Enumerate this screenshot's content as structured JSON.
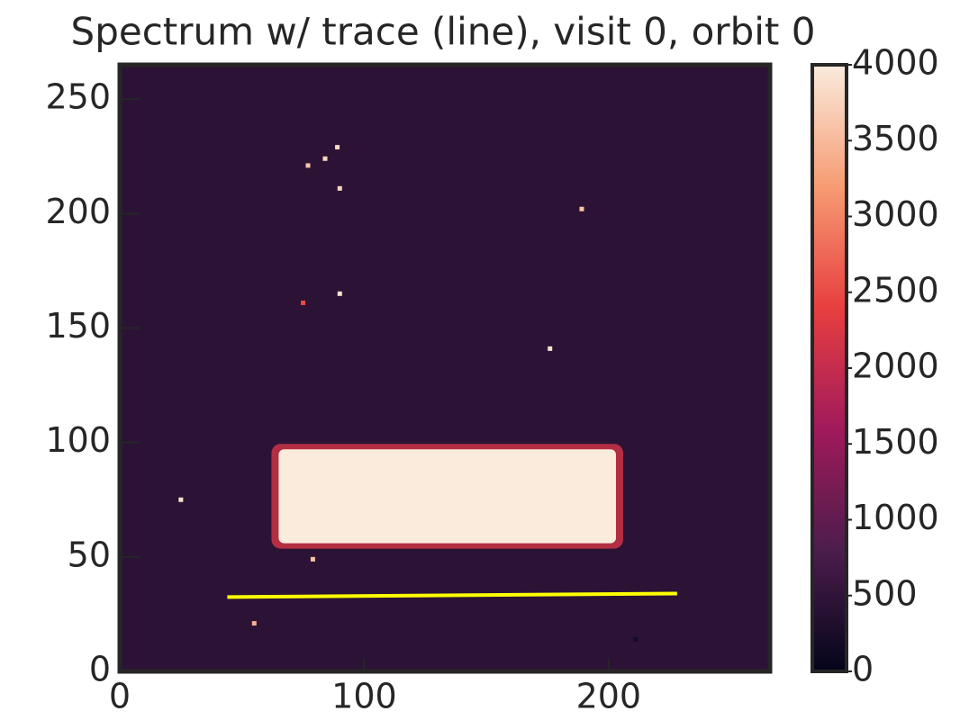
{
  "chart_data": {
    "type": "image",
    "title": "Spectrum w/ trace (line), visit 0, orbit 0",
    "xlim": [
      0,
      266
    ],
    "ylim": [
      0,
      265
    ],
    "xticks": [
      0,
      100,
      200
    ],
    "yticks": [
      0,
      50,
      100,
      150,
      200,
      250
    ],
    "background_value": 450,
    "colormap": [
      "#03051a",
      "#4c1d4b",
      "#a11a5b",
      "#e83f3f",
      "#f69c73",
      "#faebdd"
    ],
    "colorbar": {
      "lim": [
        0,
        4000
      ],
      "ticks": [
        0,
        500,
        1000,
        1500,
        2000,
        2500,
        3000,
        3500,
        4000
      ]
    },
    "spectrum": {
      "x": [
        65,
        203
      ],
      "y": [
        56,
        97
      ],
      "value": 4000
    },
    "hot_pixels": {
      "x": [
        89,
        84,
        77,
        90,
        189,
        90,
        176,
        25,
        79,
        55,
        211,
        75
      ],
      "y": [
        229,
        224,
        221,
        211,
        202,
        165,
        141,
        75,
        49,
        21,
        14,
        161
      ],
      "values": [
        3800,
        3800,
        3600,
        3800,
        3600,
        3900,
        3900,
        3900,
        3600,
        3400,
        200,
        2500
      ]
    },
    "trace": {
      "x": [
        44,
        228
      ],
      "y": [
        32.5,
        34
      ],
      "color": "#ffff00"
    }
  }
}
